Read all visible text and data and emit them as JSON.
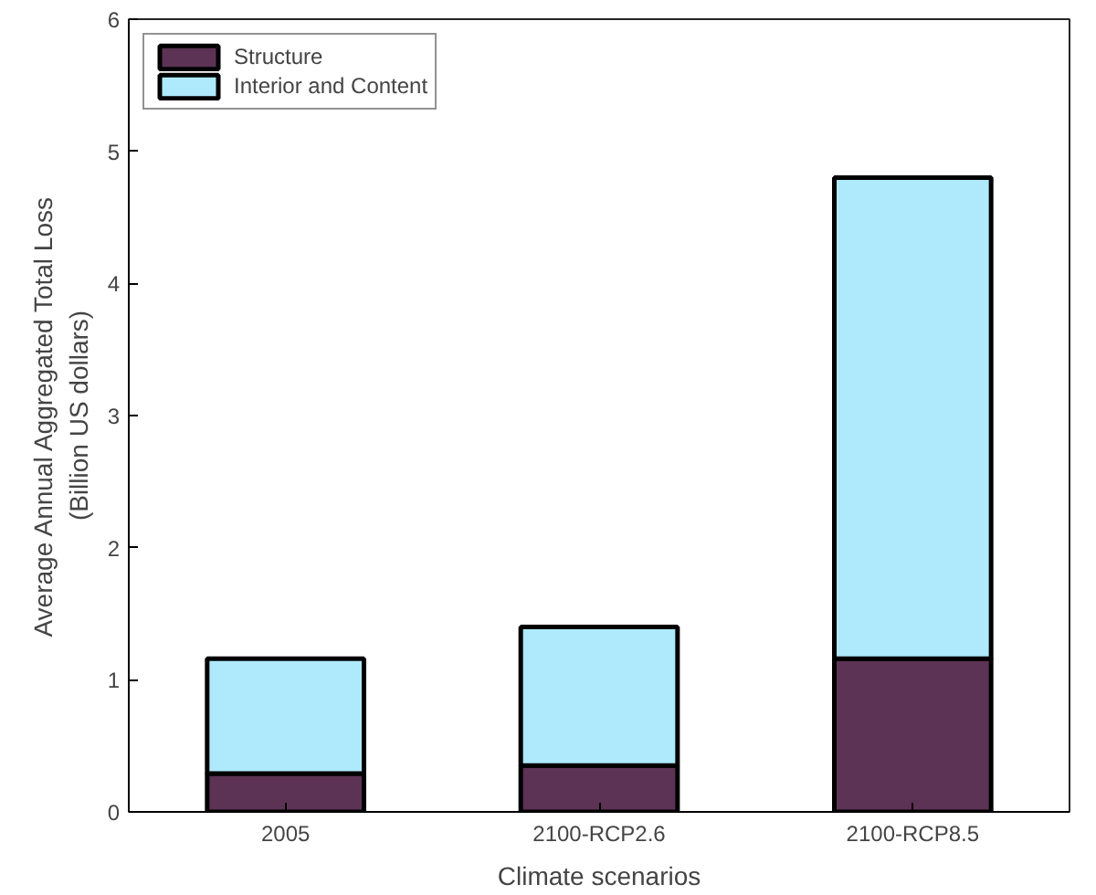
{
  "chart_data": {
    "type": "bar",
    "stacked": true,
    "xlabel": "Climate scenarios",
    "ylabel": "Average Annual Aggregated Total Loss\n(Billion US dollars)",
    "categories": [
      "2005",
      "2100-RCP2.6",
      "2100-RCP8.5"
    ],
    "series": [
      {
        "name": "Structure",
        "color": "#5c3354",
        "values": [
          0.29,
          0.35,
          1.16
        ]
      },
      {
        "name": "Interior and Content",
        "color": "#aee9fc",
        "values": [
          0.87,
          1.05,
          3.64
        ]
      }
    ],
    "ylim": [
      0,
      6
    ],
    "yticks": [
      0,
      1,
      2,
      3,
      4,
      5,
      6
    ],
    "grid": false,
    "legend": "top left"
  }
}
